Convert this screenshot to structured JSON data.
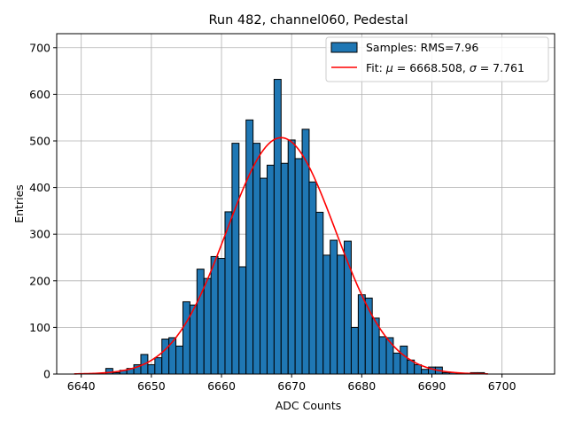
{
  "chart_data": {
    "type": "bar",
    "title": "Run 482, channel060, Pedestal",
    "xlabel": "ADC Counts",
    "ylabel": "Entries",
    "xlim": [
      6636.5,
      6707.5
    ],
    "ylim": [
      0,
      730
    ],
    "xticks": [
      6640,
      6650,
      6660,
      6670,
      6680,
      6690,
      6700
    ],
    "yticks": [
      0,
      100,
      200,
      300,
      400,
      500,
      600,
      700
    ],
    "grid": true,
    "legend_position": "top-right",
    "histogram": {
      "name": "Samples: RMS=7.96",
      "color": "#1f77b4",
      "bins": [
        {
          "x": 6644,
          "y": 12
        },
        {
          "x": 6645,
          "y": 3
        },
        {
          "x": 6646,
          "y": 8
        },
        {
          "x": 6647,
          "y": 12
        },
        {
          "x": 6648,
          "y": 20
        },
        {
          "x": 6649,
          "y": 42
        },
        {
          "x": 6650,
          "y": 20
        },
        {
          "x": 6651,
          "y": 35
        },
        {
          "x": 6652,
          "y": 75
        },
        {
          "x": 6653,
          "y": 78
        },
        {
          "x": 6654,
          "y": 60
        },
        {
          "x": 6655,
          "y": 155
        },
        {
          "x": 6656,
          "y": 148
        },
        {
          "x": 6657,
          "y": 225
        },
        {
          "x": 6658,
          "y": 205
        },
        {
          "x": 6659,
          "y": 252
        },
        {
          "x": 6660,
          "y": 248
        },
        {
          "x": 6661,
          "y": 348
        },
        {
          "x": 6662,
          "y": 495
        },
        {
          "x": 6663,
          "y": 230
        },
        {
          "x": 6664,
          "y": 545
        },
        {
          "x": 6665,
          "y": 495
        },
        {
          "x": 6666,
          "y": 420
        },
        {
          "x": 6667,
          "y": 448
        },
        {
          "x": 6668,
          "y": 632
        },
        {
          "x": 6669,
          "y": 452
        },
        {
          "x": 6670,
          "y": 502
        },
        {
          "x": 6671,
          "y": 462
        },
        {
          "x": 6672,
          "y": 525
        },
        {
          "x": 6673,
          "y": 412
        },
        {
          "x": 6674,
          "y": 347
        },
        {
          "x": 6675,
          "y": 255
        },
        {
          "x": 6676,
          "y": 287
        },
        {
          "x": 6677,
          "y": 255
        },
        {
          "x": 6678,
          "y": 285
        },
        {
          "x": 6679,
          "y": 100
        },
        {
          "x": 6680,
          "y": 170
        },
        {
          "x": 6681,
          "y": 163
        },
        {
          "x": 6682,
          "y": 120
        },
        {
          "x": 6683,
          "y": 80
        },
        {
          "x": 6684,
          "y": 78
        },
        {
          "x": 6685,
          "y": 45
        },
        {
          "x": 6686,
          "y": 60
        },
        {
          "x": 6687,
          "y": 30
        },
        {
          "x": 6688,
          "y": 20
        },
        {
          "x": 6689,
          "y": 10
        },
        {
          "x": 6690,
          "y": 15
        },
        {
          "x": 6691,
          "y": 15
        },
        {
          "x": 6692,
          "y": 3
        },
        {
          "x": 6693,
          "y": 3
        },
        {
          "x": 6694,
          "y": 1
        },
        {
          "x": 6695,
          "y": 1
        },
        {
          "x": 6696,
          "y": 3
        },
        {
          "x": 6697,
          "y": 3
        }
      ]
    },
    "fit": {
      "name_prefix": "Fit: ",
      "mu_symbol": "μ",
      "mu_text": " = 6668.508, ",
      "sigma_symbol": "σ",
      "sigma_text": " = 7.761",
      "color": "#ff0000",
      "mu": 6668.508,
      "sigma": 7.761,
      "amplitude": 507,
      "x_range": [
        6639,
        6698
      ]
    }
  }
}
